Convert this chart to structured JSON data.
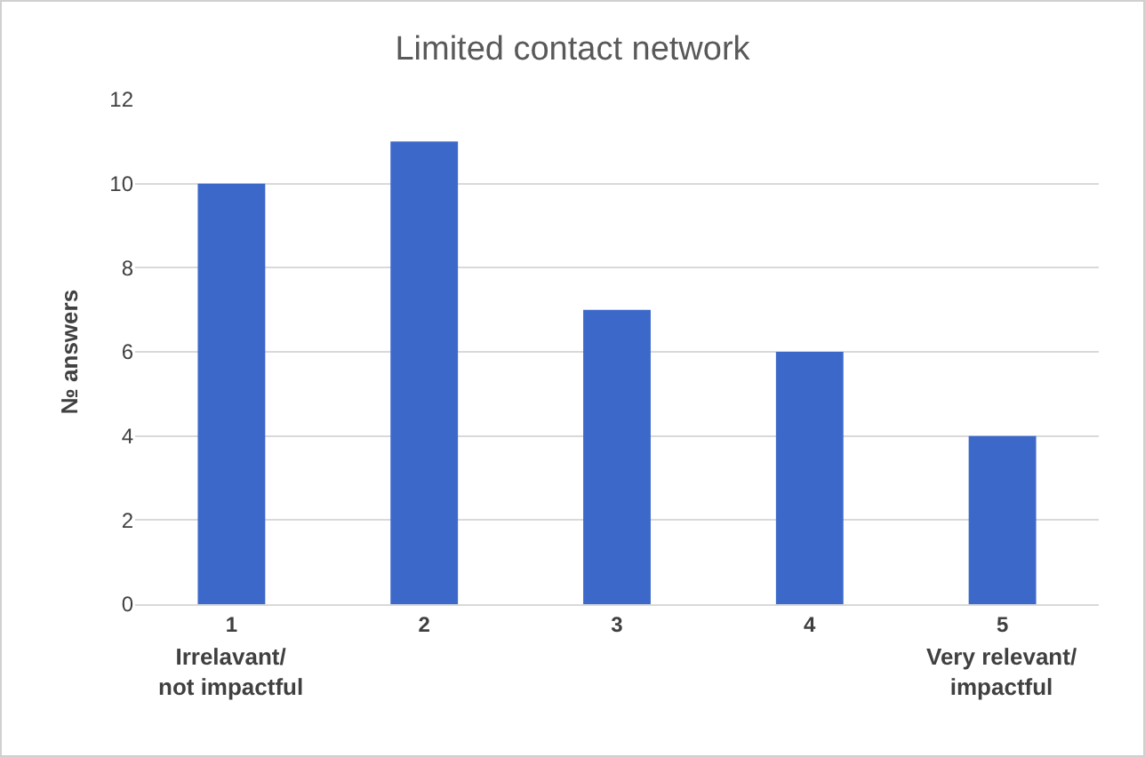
{
  "chart_data": {
    "type": "bar",
    "title": "Limited contact network",
    "ylabel": "№ answers",
    "categories": [
      "1",
      "2",
      "3",
      "4",
      "5"
    ],
    "values": [
      10,
      11,
      7,
      6,
      4
    ],
    "color": "#3c69c9",
    "ylim": [
      0,
      12
    ],
    "yticks": [
      0,
      2,
      4,
      6,
      8,
      10,
      12
    ],
    "grid": "y",
    "annotations": [
      "Irrelavant/\nnot impactful",
      "Very relevant/\nimpactful"
    ]
  }
}
